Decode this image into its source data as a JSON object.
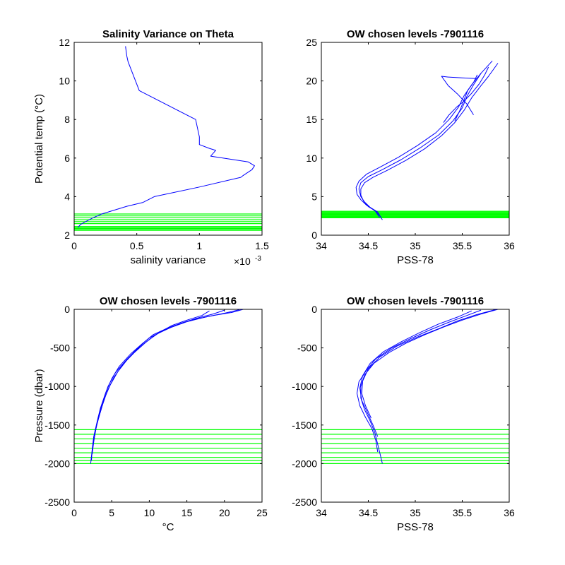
{
  "colors": {
    "profile": "#0000ff",
    "levels": "#00ff00",
    "axes": "#000000",
    "background": "#ffffff"
  },
  "chart_data": [
    {
      "id": "p1",
      "type": "line",
      "title": "Salinity Variance on Theta",
      "xlabel": "salinity variance",
      "ylabel": "Potential temp (°C)",
      "ylabel_parts": [
        "Potential temp (",
        "°",
        "C)"
      ],
      "x_exponent_label": "×10",
      "x_exponent_power": "-3",
      "xlim": [
        0,
        1.5
      ],
      "ylim": [
        2,
        12
      ],
      "xticks": [
        0,
        0.5,
        1,
        1.5
      ],
      "xtick_labels": [
        "0",
        "0.5",
        "1",
        "1.5"
      ],
      "yticks": [
        2,
        4,
        6,
        8,
        10,
        12
      ],
      "ytick_labels": [
        "2",
        "4",
        "6",
        "8",
        "10",
        "12"
      ],
      "series": [
        {
          "x": [
            0.41,
            0.42,
            0.43,
            0.52,
            0.97,
            1.0,
            1.0,
            1.08,
            1.13,
            1.09,
            1.39,
            1.44,
            1.42,
            1.35,
            1.33,
            1.0,
            0.64,
            0.55,
            0.42,
            0.22,
            0.15,
            0.09,
            0.05,
            0.03
          ],
          "y": [
            11.8,
            11.3,
            11.0,
            9.5,
            8.0,
            7.1,
            6.7,
            6.5,
            6.4,
            6.1,
            5.8,
            5.6,
            5.4,
            5.1,
            5.0,
            4.5,
            4.0,
            3.7,
            3.5,
            3.1,
            2.9,
            2.7,
            2.55,
            2.4
          ]
        }
      ],
      "hlines": [
        3.1,
        3.0,
        2.9,
        2.8,
        2.7,
        2.6,
        2.45,
        2.4,
        2.35,
        2.3,
        2.25
      ]
    },
    {
      "id": "p2",
      "type": "line",
      "title": "OW chosen levels -7901116",
      "xlabel": "PSS-78",
      "ylabel": "",
      "xlim": [
        34,
        36
      ],
      "ylim": [
        0,
        25
      ],
      "xticks": [
        34,
        34.5,
        35,
        35.5,
        36
      ],
      "xtick_labels": [
        "34",
        "34.5",
        "35",
        "35.5",
        "36"
      ],
      "yticks": [
        0,
        5,
        10,
        15,
        20,
        25
      ],
      "ytick_labels": [
        "0",
        "5",
        "10",
        "15",
        "20",
        "25"
      ],
      "series": [
        {
          "x": [
            34.65,
            34.6,
            34.52,
            34.46,
            34.42,
            34.4,
            34.42,
            34.5,
            34.65,
            34.85,
            35.05,
            35.25,
            35.4,
            35.5,
            35.55,
            35.62,
            35.7,
            35.82
          ],
          "y": [
            2.0,
            3.0,
            3.6,
            4.3,
            5.0,
            6.0,
            6.8,
            7.6,
            8.5,
            9.8,
            11.3,
            13.0,
            14.8,
            16.5,
            18.0,
            19.5,
            21.0,
            22.6
          ]
        },
        {
          "x": [
            34.62,
            34.57,
            34.48,
            34.42,
            34.38,
            34.37,
            34.4,
            34.48,
            34.62,
            34.82,
            35.02,
            35.22,
            35.36,
            35.46,
            35.52,
            35.6,
            35.7
          ],
          "y": [
            2.3,
            3.2,
            3.9,
            4.6,
            5.3,
            6.2,
            7.0,
            7.9,
            8.8,
            10.1,
            11.6,
            13.3,
            15.0,
            16.6,
            18.1,
            19.5,
            21.0
          ]
        },
        {
          "x": [
            34.63,
            34.58,
            34.5,
            34.45,
            34.42,
            34.42,
            34.46,
            34.55,
            34.7,
            34.9,
            35.1,
            35.28,
            35.42,
            35.52,
            35.6,
            35.7,
            35.78,
            35.88
          ],
          "y": [
            2.4,
            3.1,
            3.7,
            4.4,
            5.2,
            6.0,
            6.8,
            7.5,
            8.4,
            9.7,
            11.2,
            12.9,
            14.6,
            16.2,
            17.8,
            19.4,
            20.6,
            22.3
          ]
        },
        {
          "x": [
            35.42,
            35.48,
            35.52,
            35.56,
            35.62,
            35.66
          ],
          "y": [
            14.8,
            16.3,
            17.6,
            18.8,
            19.8,
            20.8
          ]
        },
        {
          "x": [
            35.65,
            35.5,
            35.35,
            35.28,
            35.35,
            35.45,
            35.55,
            35.62
          ],
          "y": [
            20.3,
            20.4,
            20.5,
            20.6,
            19.4,
            18.3,
            17.0,
            15.6
          ]
        },
        {
          "x": [
            35.3,
            35.36,
            35.44,
            35.52,
            35.6,
            35.68,
            35.74,
            35.78
          ],
          "y": [
            14.6,
            15.6,
            16.6,
            17.4,
            18.4,
            19.6,
            20.8,
            21.8
          ]
        }
      ],
      "hlines": [
        3.1,
        3.0,
        2.9,
        2.8,
        2.7,
        2.6,
        2.5,
        2.45,
        2.4,
        2.35,
        2.3,
        2.25
      ]
    },
    {
      "id": "p3",
      "type": "line",
      "title": "OW chosen levels -7901116",
      "xlabel": "°C",
      "ylabel": "Pressure (dbar)",
      "xlim": [
        0,
        25
      ],
      "ylim": [
        -2500,
        0
      ],
      "xticks": [
        0,
        5,
        10,
        15,
        20,
        25
      ],
      "xtick_labels": [
        "0",
        "5",
        "10",
        "15",
        "20",
        "25"
      ],
      "yticks": [
        -2500,
        -2000,
        -1500,
        -1000,
        -500,
        0
      ],
      "ytick_labels": [
        "-2500",
        "-2000",
        "-1500",
        "-1000",
        "-500",
        "0"
      ],
      "series": [
        {
          "x": [
            22.5,
            21.0,
            18.5,
            16.0,
            14.0,
            12.0,
            10.0,
            8.5,
            7.0,
            5.5,
            4.5,
            3.8,
            3.2,
            2.8,
            2.5,
            2.3,
            2.2
          ],
          "y": [
            0,
            -40,
            -80,
            -130,
            -190,
            -270,
            -370,
            -500,
            -650,
            -820,
            -1000,
            -1200,
            -1400,
            -1600,
            -1750,
            -1900,
            -2000
          ]
        },
        {
          "x": [
            20.0,
            18.5,
            16.5,
            14.5,
            12.5,
            10.5,
            9.0,
            7.5,
            6.0,
            5.0,
            4.2,
            3.5,
            3.0,
            2.6,
            2.4,
            2.3
          ],
          "y": [
            -10,
            -60,
            -110,
            -170,
            -240,
            -330,
            -450,
            -580,
            -740,
            -900,
            -1080,
            -1280,
            -1480,
            -1650,
            -1820,
            -1960
          ]
        },
        {
          "x": [
            18.0,
            17.0,
            15.0,
            13.0,
            11.5,
            10.0,
            8.5,
            7.0,
            5.8,
            4.8,
            4.0,
            3.4,
            2.9,
            2.6,
            2.4
          ],
          "y": [
            -20,
            -80,
            -140,
            -210,
            -290,
            -390,
            -510,
            -660,
            -810,
            -980,
            -1160,
            -1360,
            -1540,
            -1720,
            -1880
          ]
        },
        {
          "x": [
            22.0,
            20.0,
            17.5,
            15.0,
            13.0,
            11.0,
            9.5,
            8.0,
            6.5,
            5.3,
            4.4,
            3.7,
            3.1,
            2.7
          ],
          "y": [
            -5,
            -50,
            -100,
            -160,
            -230,
            -320,
            -430,
            -560,
            -710,
            -880,
            -1060,
            -1260,
            -1460,
            -1640
          ]
        }
      ],
      "hlines": [
        -1560,
        -1620,
        -1680,
        -1740,
        -1800,
        -1860,
        -1920,
        -1960,
        -2000
      ]
    },
    {
      "id": "p4",
      "type": "line",
      "title": "OW chosen levels -7901116",
      "xlabel": "PSS-78",
      "ylabel": "",
      "xlim": [
        34,
        36
      ],
      "ylim": [
        -2500,
        0
      ],
      "xticks": [
        34,
        34.5,
        35,
        35.5,
        36
      ],
      "xtick_labels": [
        "34",
        "34.5",
        "35",
        "35.5",
        "36"
      ],
      "yticks": [
        -2500,
        -2000,
        -1500,
        -1000,
        -500,
        0
      ],
      "ytick_labels": [
        "-2500",
        "-2000",
        "-1500",
        "-1000",
        "-500",
        "0"
      ],
      "series": [
        {
          "x": [
            35.88,
            35.7,
            35.5,
            35.3,
            35.1,
            34.9,
            34.72,
            34.56,
            34.46,
            34.42,
            34.42,
            34.46,
            34.52,
            34.57,
            34.6,
            34.63,
            34.65
          ],
          "y": [
            0,
            -60,
            -140,
            -230,
            -330,
            -440,
            -560,
            -700,
            -850,
            -1000,
            -1150,
            -1300,
            -1450,
            -1600,
            -1750,
            -1900,
            -2000
          ]
        },
        {
          "x": [
            35.7,
            35.55,
            35.35,
            35.15,
            34.95,
            34.75,
            34.58,
            34.48,
            34.4,
            34.38,
            34.41,
            34.47,
            34.54,
            34.58,
            34.6
          ],
          "y": [
            -10,
            -80,
            -170,
            -270,
            -380,
            -500,
            -640,
            -790,
            -940,
            -1090,
            -1250,
            -1400,
            -1550,
            -1700,
            -1850
          ]
        },
        {
          "x": [
            35.6,
            35.45,
            35.25,
            35.05,
            34.85,
            34.66,
            34.52,
            34.44,
            34.41,
            34.43,
            34.49,
            34.55,
            34.6
          ],
          "y": [
            -20,
            -100,
            -190,
            -300,
            -420,
            -550,
            -700,
            -860,
            -1020,
            -1180,
            -1340,
            -1500,
            -1650
          ]
        },
        {
          "x": [
            35.85,
            35.65,
            35.45,
            35.25,
            35.02,
            34.8,
            34.62,
            34.5,
            34.44,
            34.43,
            34.47,
            34.53
          ],
          "y": [
            -5,
            -70,
            -150,
            -250,
            -360,
            -480,
            -620,
            -770,
            -930,
            -1090,
            -1250,
            -1410
          ]
        }
      ],
      "hlines": [
        -1560,
        -1620,
        -1680,
        -1740,
        -1800,
        -1860,
        -1920,
        -1960,
        -2000
      ]
    }
  ]
}
